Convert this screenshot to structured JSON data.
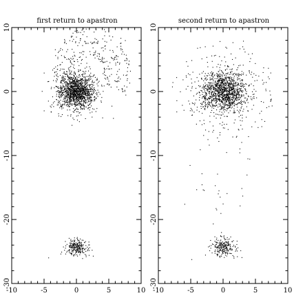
{
  "chart_data": [
    {
      "type": "scatter",
      "title": "first return to apastron",
      "xlim": [
        -10,
        10
      ],
      "ylim": [
        -30,
        10
      ],
      "x_ticks": [
        "-10",
        "-5",
        "0",
        "5",
        "10"
      ],
      "y_ticks": [
        "-30",
        "-20",
        "-10",
        "0",
        "10"
      ],
      "clusters": [
        {
          "center": [
            0,
            0
          ],
          "spread": [
            1.3,
            1.3
          ],
          "count": 1400
        },
        {
          "center": [
            0,
            -24.3
          ],
          "spread": [
            0.8,
            0.6
          ],
          "count": 260
        }
      ],
      "arcs": [
        {
          "center": [
            1.6,
            2.4
          ],
          "radius": 3.2,
          "thickness": 0.35,
          "angle_from": -20,
          "angle_to": 240,
          "count": 120
        },
        {
          "center": [
            2.0,
            3.0
          ],
          "radius": 4.4,
          "thickness": 0.35,
          "angle_from": -30,
          "angle_to": 230,
          "count": 110
        },
        {
          "center": [
            2.4,
            3.3
          ],
          "radius": 5.6,
          "thickness": 0.35,
          "angle_from": -35,
          "angle_to": 220,
          "count": 100
        }
      ],
      "grid": false,
      "legend": "none"
    },
    {
      "type": "scatter",
      "title": "second return to apastron",
      "xlim": [
        -10,
        10
      ],
      "ylim": [
        -30,
        10
      ],
      "x_ticks": [
        "-10",
        "-5",
        "0",
        "5",
        "10"
      ],
      "y_ticks": [
        "-30",
        "-20",
        "-10",
        "0",
        "10"
      ],
      "clusters": [
        {
          "center": [
            0,
            0
          ],
          "spread": [
            1.6,
            1.5
          ],
          "count": 1300
        },
        {
          "center": [
            0,
            -24.3
          ],
          "spread": [
            0.9,
            0.7
          ],
          "count": 240
        }
      ],
      "halo": {
        "center": [
          0,
          0
        ],
        "radius": 8,
        "count": 180
      },
      "bridge": {
        "from": [
          0,
          -2
        ],
        "to": [
          0,
          -22
        ],
        "count": 40
      },
      "grid": false,
      "legend": "none"
    }
  ]
}
